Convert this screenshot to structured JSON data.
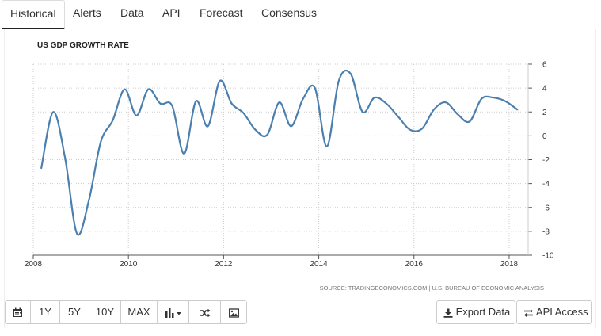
{
  "tabs": [
    {
      "label": "Historical",
      "active": true
    },
    {
      "label": "Alerts"
    },
    {
      "label": "Data"
    },
    {
      "label": "API"
    },
    {
      "label": "Forecast"
    },
    {
      "label": "Consensus"
    }
  ],
  "toolbar": {
    "buttons": [
      "1Y",
      "5Y",
      "10Y",
      "MAX"
    ],
    "export_label": "Export Data",
    "api_label": "API Access"
  },
  "icons": [
    "calendar-icon",
    "chart-type-icon",
    "shuffle-icon",
    "image-icon",
    "download-icon",
    "swap-arrows-icon"
  ],
  "colors": {
    "series": "#4a7fb0",
    "grid": "#cccccc",
    "axis": "#333333"
  },
  "chart_data": {
    "type": "line",
    "title": "US GDP GROWTH RATE",
    "source": "SOURCE: TRADINGECONOMICS.COM | U.S. BUREAU OF ECONOMIC ANALYSIS",
    "xlim": [
      2008,
      2018.4
    ],
    "ylim": [
      -10,
      6
    ],
    "x_ticks": [
      "2008",
      "2010",
      "2012",
      "2014",
      "2016",
      "2018"
    ],
    "y_ticks": [
      "6",
      "4",
      "2",
      "0",
      "-2",
      "-4",
      "-6",
      "-8",
      "-10"
    ],
    "grid": true,
    "y_axis_side": "right",
    "series": [
      {
        "x": [
          2008.17,
          2008.42,
          2008.67,
          2008.92,
          2009.17,
          2009.42,
          2009.67,
          2009.92,
          2010.17,
          2010.42,
          2010.67,
          2010.92,
          2011.17,
          2011.42,
          2011.67,
          2011.92,
          2012.17,
          2012.42,
          2012.67,
          2012.92,
          2013.17,
          2013.42,
          2013.67,
          2013.92,
          2014.17,
          2014.42,
          2014.67,
          2014.92,
          2015.17,
          2015.42,
          2015.67,
          2015.92,
          2016.17,
          2016.42,
          2016.67,
          2016.92,
          2017.17,
          2017.42,
          2017.67,
          2017.92,
          2018.17
        ],
        "y": [
          -2.7,
          2.0,
          -1.9,
          -8.2,
          -5.4,
          -0.5,
          1.3,
          3.9,
          1.7,
          3.9,
          2.7,
          2.5,
          -1.5,
          2.9,
          0.8,
          4.6,
          2.7,
          1.9,
          0.5,
          0.1,
          2.8,
          0.8,
          3.1,
          4.0,
          -0.9,
          4.6,
          5.2,
          2.0,
          3.2,
          2.7,
          1.6,
          0.5,
          0.6,
          2.2,
          2.8,
          1.8,
          1.2,
          3.1,
          3.2,
          2.9,
          2.2
        ]
      }
    ]
  }
}
